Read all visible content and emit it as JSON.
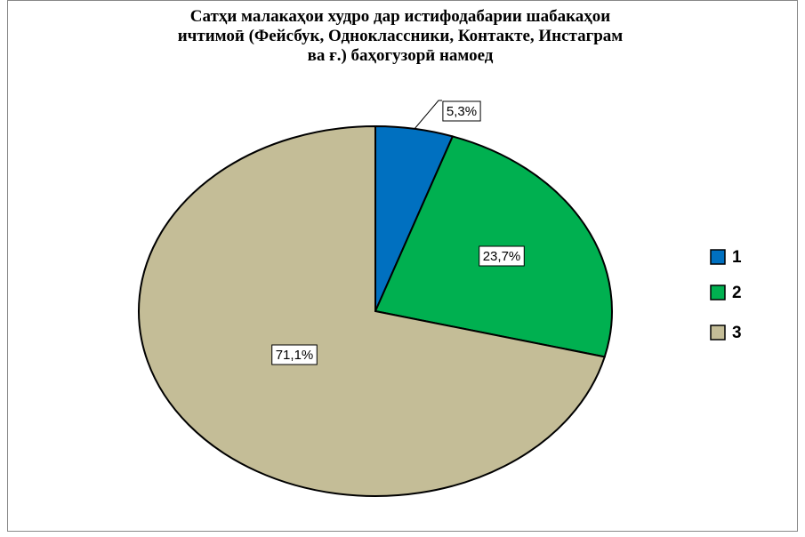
{
  "chart_data": {
    "type": "pie",
    "title": "Сатҳи малакаҳои худро дар истифодабарии шабакаҳои\nичтимоӣ (Фейсбук, Одноклассники,  Контакте, Инстаграм\nва ғ.) баҳогузорӣ намоед",
    "categories": [
      "1",
      "2",
      "3"
    ],
    "values": [
      5.3,
      23.7,
      71.1
    ],
    "value_labels": [
      "5,3%",
      "23,7%",
      "71,1%"
    ],
    "colors": [
      "#0070c0",
      "#00b050",
      "#c4bd97"
    ],
    "legend": "right"
  }
}
